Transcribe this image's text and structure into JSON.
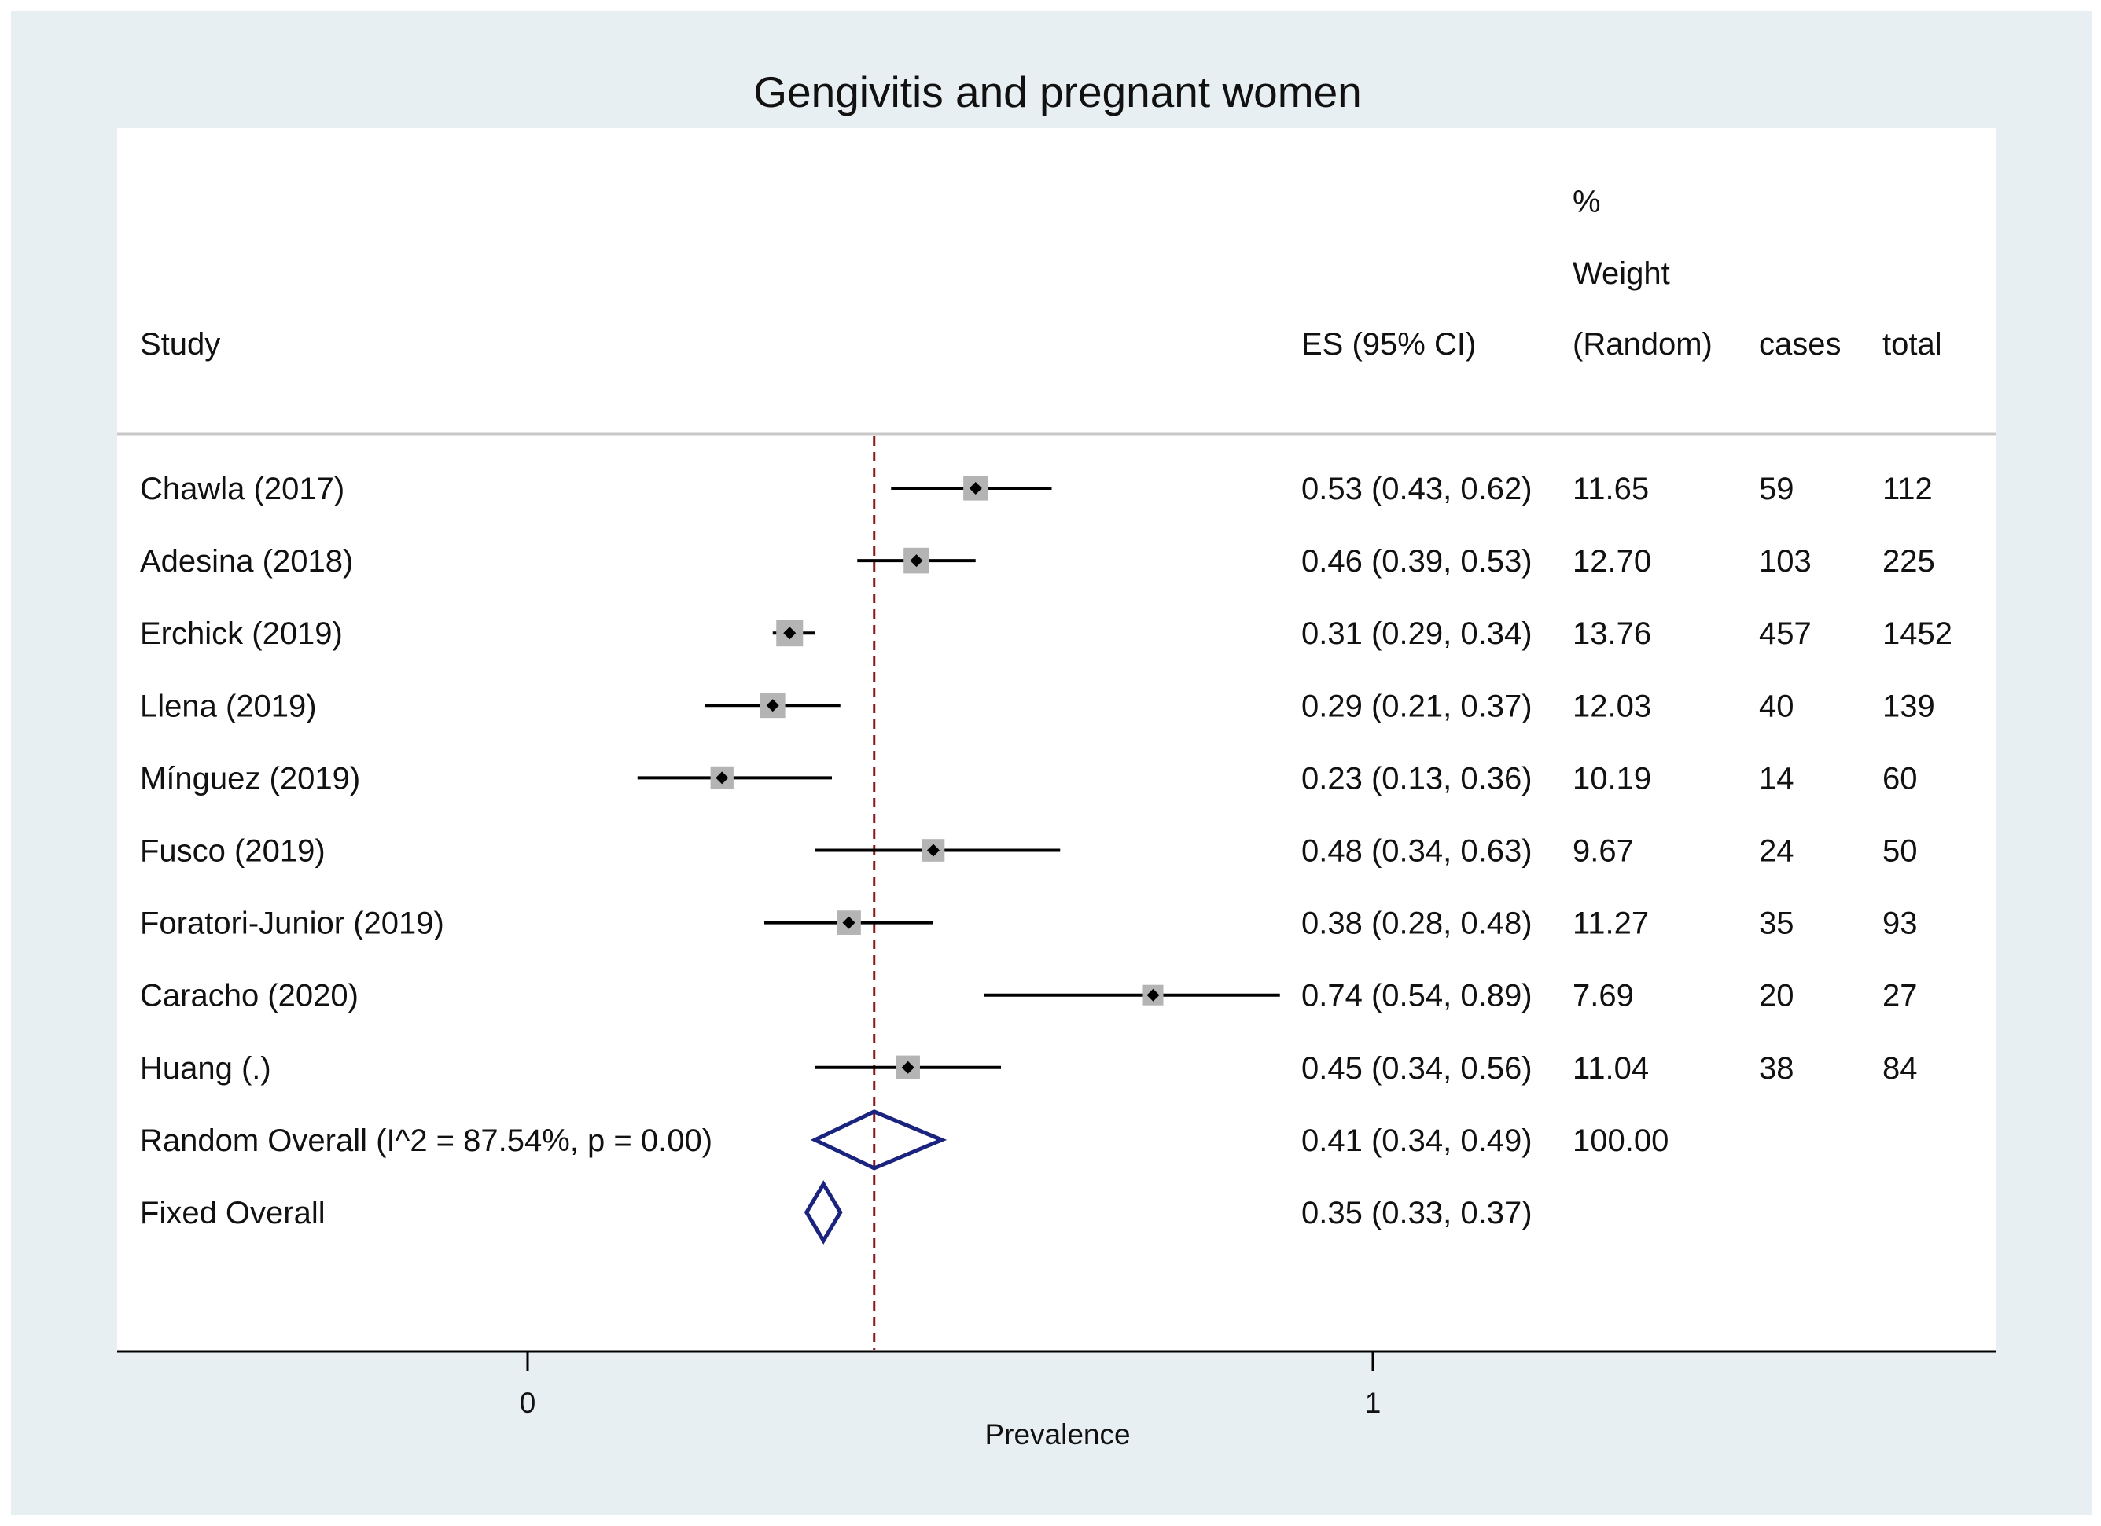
{
  "chart_data": {
    "type": "forest",
    "title": "Gengivitis and pregnant women",
    "xlabel": "Prevalence",
    "xlim": [
      -0.485,
      1.735
    ],
    "xticks": [
      0,
      1
    ],
    "reference_line": 0.41,
    "headers": {
      "study": "Study",
      "es": "ES (95% CI)",
      "weight_lines": [
        "%",
        "Weight",
        "(Random)"
      ],
      "cases": "cases",
      "total": "total"
    },
    "studies": [
      {
        "name": "Chawla (2017)",
        "es": 0.53,
        "lo": 0.43,
        "hi": 0.62,
        "es_text": "0.53 (0.43, 0.62)",
        "weight": "11.65",
        "cases": "59",
        "total": "112"
      },
      {
        "name": "Adesina (2018)",
        "es": 0.46,
        "lo": 0.39,
        "hi": 0.53,
        "es_text": "0.46 (0.39, 0.53)",
        "weight": "12.70",
        "cases": "103",
        "total": "225"
      },
      {
        "name": "Erchick (2019)",
        "es": 0.31,
        "lo": 0.29,
        "hi": 0.34,
        "es_text": "0.31 (0.29, 0.34)",
        "weight": "13.76",
        "cases": "457",
        "total": "1452"
      },
      {
        "name": "Llena  (2019)",
        "es": 0.29,
        "lo": 0.21,
        "hi": 0.37,
        "es_text": "0.29 (0.21, 0.37)",
        "weight": "12.03",
        "cases": "40",
        "total": "139"
      },
      {
        "name": "Mínguez (2019)",
        "es": 0.23,
        "lo": 0.13,
        "hi": 0.36,
        "es_text": "0.23 (0.13, 0.36)",
        "weight": "10.19",
        "cases": "14",
        "total": "60"
      },
      {
        "name": "Fusco  (2019)",
        "es": 0.48,
        "lo": 0.34,
        "hi": 0.63,
        "es_text": "0.48 (0.34, 0.63)",
        "weight": "9.67",
        "cases": "24",
        "total": "50"
      },
      {
        "name": "Foratori-Junior (2019)",
        "es": 0.38,
        "lo": 0.28,
        "hi": 0.48,
        "es_text": "0.38 (0.28, 0.48)",
        "weight": "11.27",
        "cases": "35",
        "total": "93"
      },
      {
        "name": "Caracho (2020)",
        "es": 0.74,
        "lo": 0.54,
        "hi": 0.89,
        "es_text": "0.74 (0.54, 0.89)",
        "weight": "7.69",
        "cases": "20",
        "total": "27"
      },
      {
        "name": "Huang  (.)",
        "es": 0.45,
        "lo": 0.34,
        "hi": 0.56,
        "es_text": "0.45 (0.34, 0.56)",
        "weight": "11.04",
        "cases": "38",
        "total": "84"
      }
    ],
    "overall": [
      {
        "name": "Random Overall  (I^2 = 87.54%, p = 0.00)",
        "es": 0.41,
        "lo": 0.34,
        "hi": 0.49,
        "es_text": "0.41 (0.34, 0.49)",
        "weight": "100.00"
      },
      {
        "name": "Fixed Overall",
        "es": 0.35,
        "lo": 0.33,
        "hi": 0.37,
        "es_text": "0.35 (0.33, 0.37)",
        "weight": ""
      }
    ],
    "colors": {
      "outer_background": "#e8eff2",
      "plot_background": "#ffffff",
      "ci_line": "#000000",
      "weight_box": "#b4b4b4",
      "point": "#000000",
      "diamond": "#1a237e",
      "reference_line": "#8b1a1a",
      "header_rule": "#c8c8c8",
      "axis": "#000000"
    }
  }
}
